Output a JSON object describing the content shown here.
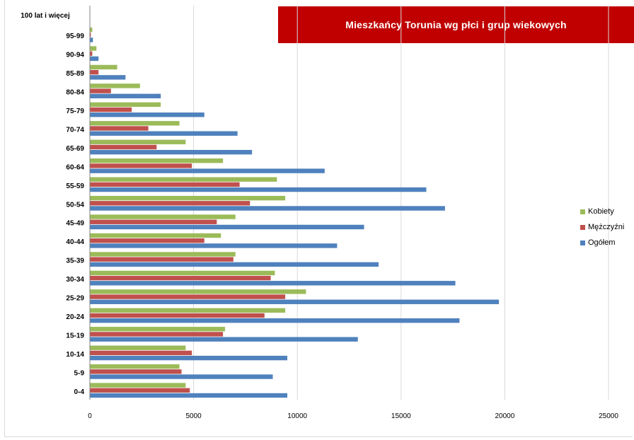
{
  "chart_data": {
    "type": "bar",
    "orientation": "horizontal",
    "title": "Mieszkańcy Torunia wg płci i grup wiekowych",
    "ylabel": "100 lat i więcej",
    "categories": [
      "0-4",
      "5-9",
      "10-14",
      "15-19",
      "20-24",
      "25-29",
      "30-34",
      "35-39",
      "40-44",
      "45-49",
      "50-54",
      "55-59",
      "60-64",
      "65-69",
      "70-74",
      "75-79",
      "80-84",
      "85-89",
      "90-94",
      "95-99"
    ],
    "series": [
      {
        "name": "Kobiety",
        "color": "#9bbb59",
        "values": [
          4600,
          4300,
          4600,
          6500,
          9400,
          10400,
          8900,
          7000,
          6300,
          7000,
          9400,
          9000,
          6400,
          4600,
          4300,
          3400,
          2400,
          1300,
          300,
          100
        ]
      },
      {
        "name": "Mężczyźni",
        "color": "#c0504d",
        "values": [
          4800,
          4400,
          4900,
          6400,
          8400,
          9400,
          8700,
          6900,
          5500,
          6100,
          7700,
          7200,
          4900,
          3200,
          2800,
          2000,
          1000,
          400,
          100,
          30
        ]
      },
      {
        "name": "Ogółem",
        "color": "#4f81bd",
        "values": [
          9500,
          8800,
          9500,
          12900,
          17800,
          19700,
          17600,
          13900,
          11900,
          13200,
          17100,
          16200,
          11300,
          7800,
          7100,
          5500,
          3400,
          1700,
          400,
          130
        ]
      }
    ],
    "xlim": [
      0,
      25000
    ],
    "x_ticks": [
      "0",
      "5000",
      "10000",
      "15000",
      "20000",
      "25000"
    ],
    "grid": true,
    "legend_position": "right"
  }
}
